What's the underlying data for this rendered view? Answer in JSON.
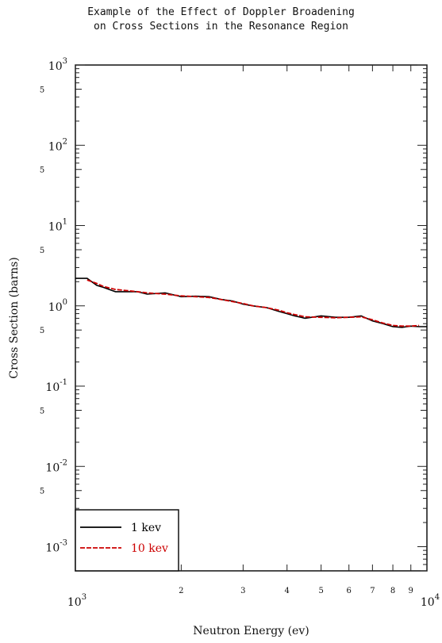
{
  "chart_data": {
    "type": "line",
    "title": "Example of the Effect of Doppler Broadening",
    "subtitle": "on Cross Sections in the Resonance Region",
    "xlabel": "Neutron Energy (ev)",
    "ylabel": "Cross Section (barns)",
    "x_scale": "log",
    "y_scale": "log",
    "xlim": [
      1000,
      10000
    ],
    "ylim": [
      0.0005,
      1000
    ],
    "x_major_ticks": [
      {
        "value": 1000,
        "base": "10",
        "exp": "3"
      },
      {
        "value": 10000,
        "base": "10",
        "exp": "4"
      }
    ],
    "x_minor_ticks": [
      {
        "value": 2000,
        "label": "2"
      },
      {
        "value": 3000,
        "label": "3"
      },
      {
        "value": 4000,
        "label": "4"
      },
      {
        "value": 5000,
        "label": "5"
      },
      {
        "value": 6000,
        "label": "6"
      },
      {
        "value": 7000,
        "label": "7"
      },
      {
        "value": 8000,
        "label": "8"
      },
      {
        "value": 9000,
        "label": "9"
      }
    ],
    "y_major_ticks": [
      {
        "value": 1000,
        "base": "10",
        "exp": "3"
      },
      {
        "value": 100,
        "base": "10",
        "exp": "2"
      },
      {
        "value": 10,
        "base": "10",
        "exp": "1"
      },
      {
        "value": 1,
        "base": "10",
        "exp": "0"
      },
      {
        "value": 0.1,
        "base": "10",
        "exp": "-1"
      },
      {
        "value": 0.01,
        "base": "10",
        "exp": "-2"
      },
      {
        "value": 0.001,
        "base": "10",
        "exp": "-3"
      }
    ],
    "y_minor_labels": [
      {
        "value": 500,
        "label": "5"
      },
      {
        "value": 50,
        "label": "5"
      },
      {
        "value": 5,
        "label": "5"
      },
      {
        "value": 0.5,
        "label": "5"
      },
      {
        "value": 0.05,
        "label": "5"
      },
      {
        "value": 0.005,
        "label": "5"
      }
    ],
    "legend_position": "bottom-left",
    "series": [
      {
        "name": "1 kev",
        "color": "#000000",
        "style": "solid",
        "x": [
          1000,
          1080,
          1150,
          1200,
          1300,
          1400,
          1500,
          1600,
          1800,
          2000,
          2200,
          2400,
          2600,
          2800,
          3000,
          3200,
          3500,
          3800,
          4000,
          4200,
          4500,
          5000,
          5500,
          6000,
          6500,
          7000,
          7500,
          8000,
          8500,
          9000,
          9500,
          10000
        ],
        "y": [
          2.2,
          2.2,
          1.8,
          1.7,
          1.5,
          1.5,
          1.5,
          1.4,
          1.45,
          1.3,
          1.32,
          1.3,
          1.2,
          1.15,
          1.05,
          1.0,
          0.95,
          0.85,
          0.8,
          0.75,
          0.7,
          0.75,
          0.72,
          0.72,
          0.75,
          0.65,
          0.6,
          0.55,
          0.54,
          0.56,
          0.55,
          0.55
        ]
      },
      {
        "name": "10 kev",
        "color": "#cc0000",
        "style": "dashed",
        "x": [
          1080,
          1150,
          1200,
          1300,
          1400,
          1500,
          1600,
          1800,
          2000,
          2200,
          2400,
          2600,
          2800,
          3000,
          3200,
          3500,
          3800,
          4000,
          4200,
          4500,
          5000,
          5500,
          6000,
          6500,
          7000,
          7500,
          8000,
          8500,
          9000,
          9500
        ],
        "y": [
          2.1,
          1.9,
          1.75,
          1.6,
          1.55,
          1.5,
          1.45,
          1.4,
          1.33,
          1.3,
          1.27,
          1.2,
          1.13,
          1.07,
          1.0,
          0.95,
          0.88,
          0.82,
          0.78,
          0.73,
          0.72,
          0.71,
          0.72,
          0.73,
          0.67,
          0.61,
          0.57,
          0.56,
          0.56,
          0.57
        ]
      }
    ]
  }
}
